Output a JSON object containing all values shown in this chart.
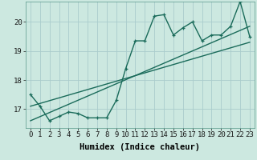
{
  "xlabel": "Humidex (Indice chaleur)",
  "ylabel": "",
  "background_color": "#cce8e0",
  "grid_color": "#aacccc",
  "line_color": "#1a6b5a",
  "x_data": [
    0,
    1,
    2,
    3,
    4,
    5,
    6,
    7,
    8,
    9,
    10,
    11,
    12,
    13,
    14,
    15,
    16,
    17,
    18,
    19,
    20,
    21,
    22,
    23
  ],
  "y_data": [
    17.5,
    17.1,
    16.6,
    16.75,
    16.9,
    16.85,
    16.7,
    16.7,
    16.7,
    17.3,
    18.4,
    19.35,
    19.35,
    20.2,
    20.25,
    19.55,
    19.8,
    20.0,
    19.35,
    19.55,
    19.55,
    19.85,
    20.7,
    19.5
  ],
  "trend1_x": [
    0,
    23
  ],
  "trend1_y": [
    17.1,
    19.3
  ],
  "trend2_x": [
    0,
    23
  ],
  "trend2_y": [
    16.6,
    19.85
  ],
  "ylim": [
    16.35,
    20.7
  ],
  "xlim": [
    -0.5,
    23.5
  ],
  "yticks": [
    17,
    18,
    19,
    20
  ],
  "xticks": [
    0,
    1,
    2,
    3,
    4,
    5,
    6,
    7,
    8,
    9,
    10,
    11,
    12,
    13,
    14,
    15,
    16,
    17,
    18,
    19,
    20,
    21,
    22,
    23
  ],
  "xlabel_fontsize": 7.5,
  "tick_fontsize": 6.5,
  "linewidth": 1.0,
  "marker_size": 3.5
}
